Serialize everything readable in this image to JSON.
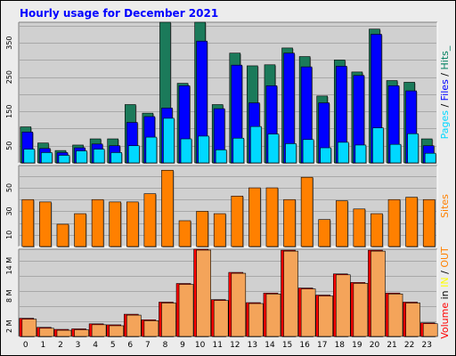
{
  "chart_data": {
    "type": "bar",
    "title": "Hourly usage for December 2021",
    "categories": [
      "0",
      "1",
      "2",
      "3",
      "4",
      "5",
      "6",
      "7",
      "8",
      "9",
      "10",
      "11",
      "12",
      "13",
      "14",
      "15",
      "16",
      "17",
      "18",
      "19",
      "20",
      "21",
      "22",
      "23"
    ],
    "panels": [
      {
        "id": "requests",
        "ylabel_parts": [
          {
            "text": "Pages",
            "color": "#00d8ff"
          },
          {
            "text": " / ",
            "color": "#000000"
          },
          {
            "text": "Files",
            "color": "#0000ff"
          },
          {
            "text": " / ",
            "color": "#000000"
          },
          {
            "text": "Hits_",
            "color": "#007f5f"
          }
        ],
        "ylim": [
          0,
          410
        ],
        "yticks": [
          50,
          150,
          250,
          350
        ],
        "ytick_labels": [
          "50",
          "150",
          "250",
          "350"
        ],
        "series": [
          {
            "name": "Hits",
            "color": "#1b7a5a",
            "values": [
              105,
              58,
              36,
              52,
              70,
              70,
              170,
              145,
              410,
              232,
              410,
              170,
              320,
              283,
              286,
              335,
              310,
              195,
              300,
              265,
              390,
              240,
              235,
              70
            ]
          },
          {
            "name": "Files",
            "color": "#0000ff",
            "values": [
              90,
              42,
              30,
              44,
              55,
              50,
              118,
              135,
              160,
              225,
              355,
              158,
              285,
              175,
              225,
              320,
              280,
              175,
              282,
              255,
              375,
              225,
              210,
              50
            ]
          },
          {
            "name": "Pages",
            "color": "#00d8ff",
            "values": [
              40,
              30,
              22,
              35,
              40,
              30,
              50,
              75,
              130,
              70,
              78,
              38,
              72,
              106,
              84,
              56,
              68,
              44,
              60,
              52,
              102,
              54,
              85,
              28
            ]
          }
        ]
      },
      {
        "id": "sites",
        "ylabel_parts": [
          {
            "text": "Sites",
            "color": "#ff8000"
          }
        ],
        "ylim": [
          0,
          69
        ],
        "yticks": [
          10,
          30,
          50
        ],
        "ytick_labels": [
          "10",
          "30",
          "50"
        ],
        "series": [
          {
            "name": "Sites",
            "color": "#ff8000",
            "values": [
              40,
              38,
              19,
              28,
              40,
              38,
              38,
              45,
              65,
              22,
              30,
              28,
              43,
              50,
              50,
              40,
              59,
              23,
              39,
              32,
              28,
              40,
              42,
              40
            ]
          }
        ]
      },
      {
        "id": "volume",
        "ylabel_parts": [
          {
            "text": "Volume",
            "color": "#ff0000"
          },
          {
            "text": " in ",
            "color": "#000000"
          },
          {
            "text": "IN",
            "color": "#ffff00"
          },
          {
            "text": " / ",
            "color": "#000000"
          },
          {
            "text": "OUT",
            "color": "#ff8000"
          }
        ],
        "ylim": [
          0,
          17.3
        ],
        "yticks": [
          2,
          8,
          14
        ],
        "ytick_labels": [
          "2 M",
          "8 M",
          "14 M"
        ],
        "series": [
          {
            "name": "Volume",
            "color": "#ff0000",
            "values": [
              3.6,
              1.8,
              1.4,
              1.5,
              2.5,
              2.3,
              4.4,
              3.3,
              6.8,
              10.5,
              17.3,
              7.3,
              12.7,
              6.7,
              8.6,
              17.1,
              9.6,
              8.2,
              12.4,
              10.7,
              17.1,
              8.6,
              6.8,
              2.7
            ]
          },
          {
            "name": "OUT",
            "color": "#f4a45a",
            "values": [
              3.6,
              1.8,
              1.4,
              1.5,
              2.5,
              2.3,
              4.4,
              3.3,
              6.8,
              10.5,
              17.3,
              7.3,
              12.7,
              6.7,
              8.6,
              17.1,
              9.6,
              8.2,
              12.4,
              10.7,
              17.1,
              8.6,
              6.8,
              2.7
            ]
          }
        ]
      }
    ],
    "grid": true,
    "colors": {
      "background": "#ececec",
      "plot_background": "#d0d0d0",
      "grid": "#a8a8a8",
      "border": "#000000"
    }
  }
}
